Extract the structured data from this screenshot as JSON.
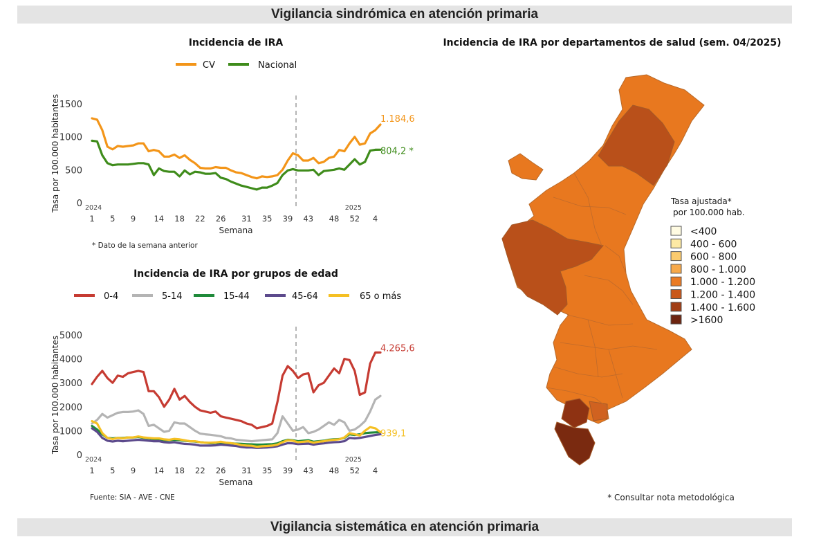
{
  "page": {
    "top_banner": "Vigilancia sindrómica en atención primaria",
    "bottom_banner": "Vigilancia sistemática en atención primaria",
    "source_note": "Fuente: SIA - AVE - CNE",
    "prev_week_note": "* Dato de la semana anterior",
    "method_note": "* Consultar nota metodológica"
  },
  "chart_data": [
    {
      "type": "line",
      "title": "Incidencia de IRA",
      "xlabel": "Semana",
      "ylabel": "Tasa por 100.000 habitantes",
      "ylim": [
        0,
        1600
      ],
      "yticks": [
        0,
        500,
        1000,
        1500
      ],
      "x_tick_labels": [
        "1",
        "5",
        "9",
        "14",
        "18",
        "22",
        "26",
        "31",
        "35",
        "39",
        "43",
        "48",
        "52",
        "4"
      ],
      "year_labels": [
        "2024",
        "2025"
      ],
      "divider_label": "39",
      "legend_position": "top",
      "grid": false,
      "series": [
        {
          "name": "CV",
          "color": "#f39519",
          "end_label": "1.184,6",
          "values": [
            1280,
            1260,
            1100,
            850,
            810,
            860,
            850,
            860,
            870,
            900,
            900,
            780,
            800,
            780,
            700,
            700,
            730,
            680,
            720,
            650,
            600,
            530,
            520,
            520,
            540,
            530,
            530,
            490,
            460,
            450,
            420,
            390,
            370,
            400,
            390,
            400,
            420,
            500,
            640,
            750,
            720,
            640,
            640,
            680,
            600,
            620,
            680,
            700,
            800,
            780,
            900,
            1000,
            880,
            900,
            1050,
            1100,
            1185
          ]
        },
        {
          "name": "Nacional",
          "color": "#3f8c1b",
          "end_label": "804,2 *",
          "values": [
            940,
            930,
            720,
            600,
            570,
            580,
            580,
            580,
            590,
            600,
            600,
            580,
            420,
            520,
            480,
            470,
            470,
            400,
            490,
            430,
            470,
            460,
            440,
            440,
            450,
            380,
            360,
            320,
            290,
            260,
            240,
            220,
            200,
            230,
            230,
            260,
            300,
            420,
            490,
            510,
            490,
            490,
            490,
            500,
            420,
            480,
            490,
            500,
            520,
            500,
            580,
            660,
            580,
            620,
            790,
            804,
            805
          ]
        }
      ]
    },
    {
      "type": "line",
      "title": "Incidencia de IRA por grupos de edad",
      "xlabel": "Semana",
      "ylabel": "Tasa por 100.000 habitantes",
      "ylim": [
        0,
        5000
      ],
      "yticks": [
        0,
        1000,
        2000,
        3000,
        4000,
        5000
      ],
      "x_tick_labels": [
        "1",
        "5",
        "9",
        "14",
        "18",
        "22",
        "26",
        "31",
        "35",
        "39",
        "43",
        "48",
        "52",
        "4"
      ],
      "year_labels": [
        "2024",
        "2025"
      ],
      "divider_label": "39",
      "legend_position": "top",
      "grid": false,
      "series": [
        {
          "name": "0-4",
          "color": "#c63b32",
          "end_label": "4.265,6",
          "values": [
            2950,
            3250,
            3500,
            3200,
            3000,
            3300,
            3250,
            3400,
            3450,
            3500,
            3450,
            2650,
            2650,
            2400,
            2000,
            2300,
            2750,
            2300,
            2450,
            2200,
            2000,
            1850,
            1800,
            1750,
            1800,
            1600,
            1550,
            1500,
            1450,
            1400,
            1300,
            1250,
            1100,
            1150,
            1200,
            1300,
            2200,
            3300,
            3700,
            3500,
            3200,
            3350,
            3400,
            2600,
            2900,
            3000,
            3300,
            3600,
            3400,
            4000,
            3950,
            3500,
            2500,
            2600,
            3800,
            4265,
            4270
          ]
        },
        {
          "name": "5-14",
          "color": "#b4b4b4",
          "values": [
            1300,
            1450,
            1700,
            1550,
            1650,
            1750,
            1780,
            1780,
            1800,
            1850,
            1700,
            1200,
            1250,
            1100,
            950,
            1000,
            1350,
            1300,
            1300,
            1150,
            1000,
            880,
            850,
            830,
            800,
            770,
            700,
            680,
            620,
            600,
            580,
            560,
            580,
            600,
            620,
            640,
            900,
            1600,
            1300,
            1000,
            1050,
            1150,
            900,
            950,
            1050,
            1200,
            1350,
            1250,
            1450,
            1350,
            1000,
            1050,
            1200,
            1400,
            1800,
            2300,
            2450
          ]
        },
        {
          "name": "15-44",
          "color": "#1f8a3a",
          "values": [
            1200,
            1050,
            850,
            700,
            680,
            700,
            700,
            720,
            720,
            740,
            700,
            680,
            650,
            650,
            600,
            600,
            620,
            600,
            580,
            560,
            550,
            520,
            500,
            480,
            490,
            500,
            480,
            470,
            460,
            450,
            440,
            430,
            420,
            420,
            430,
            440,
            470,
            560,
            620,
            600,
            560,
            580,
            600,
            540,
            560,
            580,
            620,
            640,
            650,
            700,
            850,
            820,
            850,
            900,
            920,
            930,
            940
          ]
        },
        {
          "name": "45-64",
          "color": "#5c4a8c",
          "values": [
            1100,
            950,
            700,
            580,
            550,
            580,
            560,
            580,
            600,
            620,
            600,
            580,
            560,
            560,
            520,
            500,
            520,
            480,
            450,
            440,
            420,
            380,
            380,
            380,
            390,
            420,
            400,
            380,
            360,
            320,
            300,
            300,
            280,
            290,
            300,
            320,
            350,
            420,
            480,
            470,
            440,
            450,
            460,
            420,
            450,
            470,
            500,
            520,
            530,
            560,
            700,
            680,
            700,
            740,
            780,
            820,
            850
          ]
        },
        {
          "name": "65 o más",
          "color": "#f5c023",
          "end_label": "939,1",
          "values": [
            1400,
            1300,
            900,
            700,
            650,
            700,
            680,
            720,
            720,
            760,
            720,
            700,
            680,
            680,
            640,
            620,
            660,
            640,
            600,
            560,
            560,
            520,
            500,
            500,
            510,
            540,
            500,
            480,
            450,
            400,
            380,
            370,
            330,
            350,
            360,
            380,
            420,
            520,
            600,
            580,
            520,
            540,
            560,
            500,
            540,
            560,
            600,
            620,
            640,
            720,
            900,
            850,
            800,
            1000,
            1150,
            1100,
            939
          ]
        }
      ]
    }
  ],
  "map": {
    "title": "Incidencia de IRA por departamentos de salud (sem. 04/2025)",
    "legend_title_1": "Tasa ajustada*",
    "legend_title_2": "por 100.000 hab.",
    "legend": [
      {
        "label": "<400",
        "color": "#fffbe2"
      },
      {
        "label": "400 - 600",
        "color": "#fde9a4"
      },
      {
        "label": "600 - 800",
        "color": "#fbcb6e"
      },
      {
        "label": "800 - 1.000",
        "color": "#f7a94a"
      },
      {
        "label": "1.000 - 1.200",
        "color": "#ea7b24"
      },
      {
        "label": "1.200 - 1.400",
        "color": "#c9571a"
      },
      {
        "label": "1.400 - 1.600",
        "color": "#a13d14"
      },
      {
        "label": ">1600",
        "color": "#6d2410"
      }
    ]
  }
}
